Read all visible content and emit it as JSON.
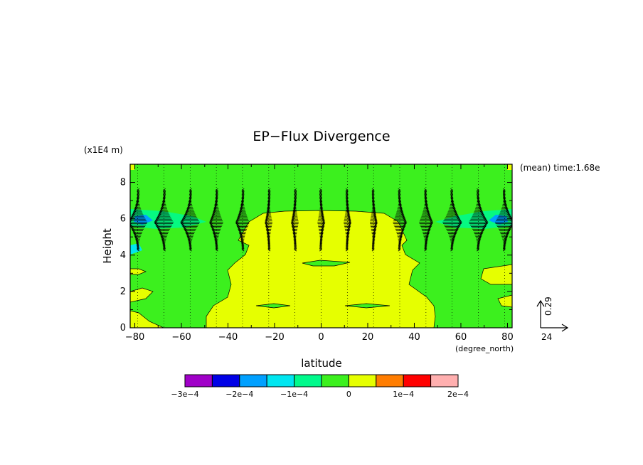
{
  "chart_data": {
    "type": "heatmap",
    "title": "EP−Flux Divergence",
    "xlabel": "latitude",
    "ylabel": "Height",
    "x_units": "(degree_north)",
    "y_units": "(x1E4 m)",
    "annotation": "(mean) time:1.68e",
    "xlim": [
      -82,
      82
    ],
    "ylim": [
      0,
      9
    ],
    "x_ticks": [
      -80,
      -60,
      -40,
      -20,
      0,
      20,
      40,
      60,
      80
    ],
    "x_tick_labels": [
      "−80",
      "−60",
      "−40",
      "−20",
      "0",
      "20",
      "40",
      "60",
      "80"
    ],
    "y_ticks": [
      0,
      2,
      4,
      6,
      8
    ],
    "y_tick_labels": [
      "0",
      "2",
      "4",
      "6",
      "8"
    ],
    "colorbar": {
      "levels": [
        -0.0003,
        -0.00025,
        -0.0002,
        -0.00015,
        -0.0001,
        -5e-05,
        0,
        5e-05,
        0.0001,
        0.00015,
        0.0002
      ],
      "colors": [
        "#a000c8",
        "#0000e6",
        "#00a0ff",
        "#00e6f0",
        "#00fa8c",
        "#3cf01e",
        "#e6ff00",
        "#ff7d00",
        "#ff0000",
        "#ffafaf"
      ],
      "tick_labels": [
        "−3e−4",
        "−2e−4",
        "−1e−4",
        "0",
        "1e−4",
        "2e−4"
      ],
      "tick_values": [
        -0.0003,
        -0.0002,
        -0.0001,
        0,
        0.0001,
        0.0002
      ]
    },
    "reference_vector": {
      "x_label": "24",
      "y_label": "0.29"
    },
    "fields": {
      "background": "negative small divergence (green, -5e-5 to 0) outside the tropics and in upper levels",
      "positive_region": "yellow (0 to 5e-5) between about 40S and 40N below 6e4 m, with tongues in the lower mid-latitudes",
      "negative_peak_height": 5.8
    }
  }
}
